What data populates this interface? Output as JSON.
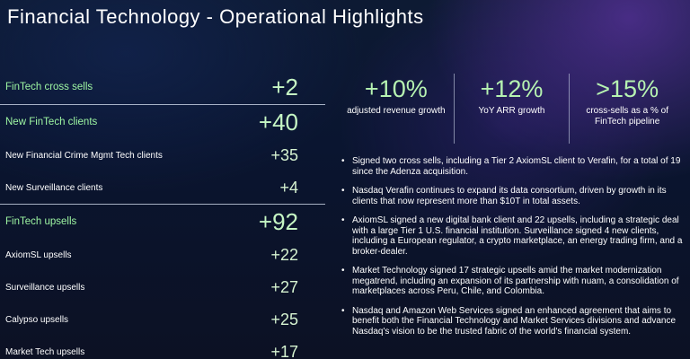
{
  "page": {
    "title": "Financial Technology - Operational Highlights"
  },
  "metrics": [
    {
      "label": "FinTech cross sells",
      "value": "+2",
      "major": true
    },
    {
      "label": "New FinTech clients",
      "value": "+40",
      "major": true
    },
    {
      "label": "New Financial Crime Mgmt Tech clients",
      "value": "+35",
      "major": false
    },
    {
      "label": "New Surveillance clients",
      "value": "+4",
      "major": false
    },
    {
      "label": "FinTech upsells",
      "value": "+92",
      "major": true
    },
    {
      "label": "AxiomSL upsells",
      "value": "+22",
      "major": false
    },
    {
      "label": "Surveillance upsells",
      "value": "+27",
      "major": false
    },
    {
      "label": "Calypso upsells",
      "value": "+25",
      "major": false
    },
    {
      "label": "Market Tech upsells",
      "value": "+17",
      "major": false
    }
  ],
  "kpis": [
    {
      "value": "+10%",
      "caption": "adjusted revenue growth"
    },
    {
      "value": "+12%",
      "caption": "YoY ARR growth"
    },
    {
      "value": ">15%",
      "caption": "cross-sells as a % of FinTech pipeline"
    }
  ],
  "bullets": [
    "Signed two cross sells, including a Tier 2 AxiomSL client to Verafin, for a total of 19 since the Adenza acquisition.",
    "Nasdaq Verafin continues to expand its data consortium, driven by growth in its clients that now represent more than $10T in total assets.",
    "AxiomSL signed a new digital bank client and 22 upsells, including a strategic deal with a large Tier 1 U.S. financial institution. Surveillance signed 4 new clients, including a European regulator, a crypto marketplace, an energy trading firm, and a broker-dealer.",
    "Market Technology signed 17 strategic upsells amid the market modernization megatrend, including an expansion of its partnership with nuam, a consolidation of marketplaces across Peru, Chile, and Colombia.",
    "Nasdaq and Amazon Web Services signed an enhanced agreement that aims to benefit both the Financial Technology and Market Services divisions and advance Nasdaq's vision to be the trusted fabric of the world's financial system."
  ],
  "colors": {
    "accent_green": "#9df5a2",
    "value_green": "#c6f7c4",
    "background": "#0a1530"
  }
}
